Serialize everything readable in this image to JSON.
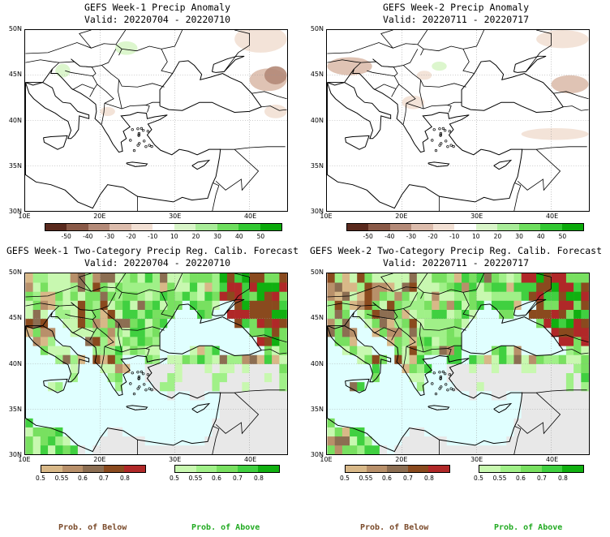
{
  "panels": [
    {
      "id": "w1-anom",
      "title": "GEFS Week-1 Precip Anomaly",
      "valid": "Valid: 20220704 - 20220710",
      "type": "anomaly",
      "lat_labels": [
        "50N",
        "45N",
        "40N",
        "35N",
        "30N"
      ],
      "lon_labels": [
        "10E",
        "20E",
        "30E",
        "40E"
      ],
      "colorbar": {
        "colors": [
          "#5a2a1e",
          "#8a5a48",
          "#b48a78",
          "#dcbcac",
          "#f2e0d4",
          "#ffffff",
          "#d8f5c8",
          "#a8ec98",
          "#6ede5e",
          "#32c832",
          "#0aaa0a"
        ],
        "ticks": [
          "-50",
          "-40",
          "-30",
          "-20",
          "-10",
          "10",
          "20",
          "30",
          "40",
          "50"
        ]
      }
    },
    {
      "id": "w2-anom",
      "title": "GEFS Week-2 Precip Anomaly",
      "valid": "Valid: 20220711 - 20220717",
      "type": "anomaly",
      "lat_labels": [
        "50N",
        "45N",
        "40N",
        "35N",
        "30N"
      ],
      "lon_labels": [
        "10E",
        "20E",
        "30E",
        "40E"
      ],
      "colorbar": {
        "colors": [
          "#5a2a1e",
          "#8a5a48",
          "#b48a78",
          "#dcbcac",
          "#f2e0d4",
          "#ffffff",
          "#d8f5c8",
          "#a8ec98",
          "#6ede5e",
          "#32c832",
          "#0aaa0a"
        ],
        "ticks": [
          "-50",
          "-40",
          "-30",
          "-20",
          "-10",
          "10",
          "20",
          "30",
          "40",
          "50"
        ]
      }
    },
    {
      "id": "w1-prob",
      "title": "GEFS Week-1 Two-Category Precip Reg. Calib. Forecast",
      "valid": "Valid: 20220704 - 20220710",
      "type": "prob",
      "lat_labels": [
        "50N",
        "45N",
        "40N",
        "35N",
        "30N"
      ],
      "lon_labels": [
        "10E",
        "20E",
        "30E",
        "40E"
      ],
      "below_colorbar": {
        "colors": [
          "#d8b888",
          "#b8906a",
          "#8c6e52",
          "#8a4a1e",
          "#b02828"
        ],
        "ticks": [
          "0.5",
          "0.55",
          "0.6",
          "0.7",
          "0.8"
        ]
      },
      "above_colorbar": {
        "colors": [
          "#c8f8b0",
          "#a0f088",
          "#78e060",
          "#40d040",
          "#10b010"
        ],
        "ticks": [
          "0.5",
          "0.55",
          "0.6",
          "0.7",
          "0.8"
        ]
      }
    },
    {
      "id": "w2-prob",
      "title": "GEFS Week-2 Two-Category Precip Reg. Calib. Forecast",
      "valid": "Valid: 20220711 - 20220717",
      "type": "prob",
      "lat_labels": [
        "50N",
        "45N",
        "40N",
        "35N",
        "30N"
      ],
      "lon_labels": [
        "10E",
        "20E",
        "30E",
        "40E"
      ],
      "below_colorbar": {
        "colors": [
          "#d8b888",
          "#b8906a",
          "#8c6e52",
          "#8a4a1e",
          "#b02828"
        ],
        "ticks": [
          "0.5",
          "0.55",
          "0.6",
          "0.7",
          "0.8"
        ]
      },
      "above_colorbar": {
        "colors": [
          "#c8f8b0",
          "#a0f088",
          "#78e060",
          "#40d040",
          "#10b010"
        ],
        "ticks": [
          "0.5",
          "0.55",
          "0.6",
          "0.7",
          "0.8"
        ]
      }
    }
  ],
  "footer": {
    "below_label": "Prob. of Below",
    "above_label": "Prob. of Above",
    "below_color": "#7a4a2a",
    "above_color": "#22aa22"
  },
  "map_colors": {
    "sea": "#e0ffff",
    "land_none": "#ffffff",
    "no_skill": "#e8e8e8",
    "outline": "#000000"
  }
}
